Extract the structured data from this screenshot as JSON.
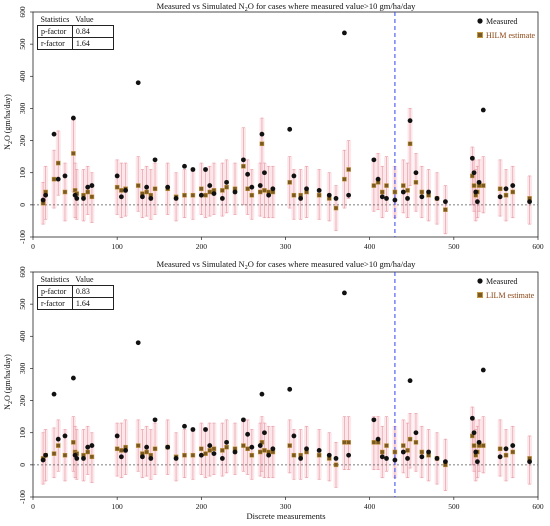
{
  "colors": {
    "measured": "#111111",
    "estimate_fill": "#7a5a22",
    "estimate_stroke": "#c8963a",
    "errorbar": "#e8a0a8",
    "band": "#fbe3e8",
    "vline": "#3344ee",
    "hline": "#555555",
    "legend_estimate_text": "#8b4513"
  },
  "charts": [
    {
      "title_prefix": "Measured vs Simulated N",
      "title_sub": "2",
      "title_suffix": "O for cases where measured value>10 gm/ha/day",
      "ylabel_prefix": "N",
      "ylabel_sub": "2",
      "ylabel_suffix": "O (gm/ha/day)",
      "legend_measured": "Measured",
      "legend_estimate": "HILM estimate",
      "stats": {
        "header_label": "Statistics",
        "header_value": "Value",
        "rows": [
          {
            "label": "p-factor",
            "value": "0.84"
          },
          {
            "label": "r-factor",
            "value": "1.64"
          }
        ]
      }
    },
    {
      "title_prefix": "Measured vs Simulated N",
      "title_sub": "2",
      "title_suffix": "O for cases where measured value>10 gm/ha/day",
      "ylabel_prefix": "N",
      "ylabel_sub": "2",
      "ylabel_suffix": "O (gm/ha/day)",
      "xlabel": "Discrete measurements",
      "legend_measured": "Measured",
      "legend_estimate": "LILM estimate",
      "stats": {
        "header_label": "Statistics",
        "header_value": "Value",
        "rows": [
          {
            "label": "p-factor",
            "value": "0.83"
          },
          {
            "label": "r-factor",
            "value": "1.64"
          }
        ]
      }
    }
  ],
  "chart_data": [
    {
      "type": "scatter",
      "title": "Measured vs Simulated N2O for cases where measured value>10 gm/ha/day",
      "xlabel": "",
      "ylabel": "N2O (gm/ha/day)",
      "xlim": [
        0,
        600
      ],
      "ylim": [
        -100,
        600
      ],
      "xticks": [
        0,
        100,
        200,
        300,
        400,
        500,
        600
      ],
      "yticks": [
        -100,
        0,
        100,
        200,
        300,
        400,
        500,
        600
      ],
      "reference_lines": {
        "vertical_x": 430,
        "horizontal_y": 0
      },
      "legend_position": "top-right",
      "series": [
        {
          "name": "Measured",
          "x": [
            12,
            15,
            25,
            30,
            38,
            48,
            50,
            52,
            60,
            65,
            70,
            100,
            105,
            110,
            125,
            130,
            135,
            140,
            145,
            160,
            170,
            180,
            190,
            200,
            205,
            210,
            215,
            225,
            230,
            240,
            250,
            255,
            260,
            270,
            272,
            275,
            280,
            285,
            305,
            310,
            318,
            325,
            340,
            352,
            360,
            370,
            375,
            405,
            410,
            415,
            420,
            430,
            440,
            445,
            448,
            455,
            462,
            470,
            480,
            490,
            522,
            524,
            526,
            528,
            530,
            535,
            555,
            562,
            570,
            590
          ],
          "y": [
            15,
            30,
            220,
            80,
            90,
            270,
            30,
            20,
            20,
            55,
            60,
            90,
            25,
            45,
            380,
            25,
            55,
            20,
            140,
            55,
            20,
            120,
            110,
            30,
            110,
            60,
            35,
            20,
            70,
            40,
            140,
            95,
            55,
            60,
            220,
            100,
            30,
            50,
            235,
            90,
            20,
            50,
            45,
            30,
            20,
            535,
            30,
            140,
            80,
            25,
            20,
            15,
            40,
            20,
            262,
            100,
            25,
            40,
            20,
            10,
            145,
            100,
            40,
            10,
            70,
            295,
            25,
            50,
            60,
            10
          ]
        },
        {
          "name": "HILM estimate",
          "x": [
            12,
            15,
            25,
            30,
            38,
            48,
            50,
            52,
            60,
            65,
            70,
            100,
            105,
            110,
            125,
            130,
            135,
            140,
            145,
            160,
            170,
            180,
            190,
            200,
            205,
            210,
            215,
            225,
            230,
            240,
            250,
            255,
            260,
            270,
            272,
            275,
            280,
            285,
            305,
            310,
            318,
            325,
            340,
            352,
            360,
            370,
            375,
            405,
            410,
            415,
            420,
            430,
            440,
            445,
            448,
            455,
            462,
            470,
            480,
            490,
            522,
            524,
            526,
            528,
            530,
            535,
            555,
            562,
            570,
            590
          ],
          "y": [
            5,
            40,
            80,
            130,
            40,
            160,
            45,
            35,
            30,
            40,
            25,
            55,
            45,
            50,
            60,
            35,
            40,
            30,
            50,
            50,
            25,
            30,
            30,
            50,
            30,
            40,
            45,
            45,
            55,
            50,
            120,
            50,
            30,
            40,
            190,
            45,
            40,
            40,
            70,
            30,
            30,
            40,
            30,
            20,
            -10,
            80,
            110,
            60,
            70,
            40,
            60,
            40,
            60,
            45,
            190,
            70,
            40,
            30,
            20,
            -15,
            90,
            60,
            30,
            40,
            60,
            60,
            50,
            30,
            40,
            20
          ],
          "lower": [
            -60,
            -45,
            -10,
            30,
            -50,
            40,
            -40,
            -45,
            -50,
            -30,
            -55,
            -30,
            -40,
            -35,
            -20,
            -40,
            -35,
            -45,
            -30,
            -30,
            -50,
            -40,
            -45,
            -30,
            -40,
            -35,
            -30,
            -35,
            -25,
            -30,
            0,
            -30,
            -45,
            -35,
            40,
            -40,
            -40,
            -40,
            -10,
            -45,
            -45,
            -40,
            -45,
            -50,
            -80,
            -10,
            20,
            -20,
            -15,
            -40,
            -20,
            -40,
            -25,
            -40,
            60,
            -20,
            -40,
            -50,
            -60,
            -90,
            0,
            -20,
            -50,
            -40,
            -20,
            -25,
            -35,
            -50,
            -40,
            -60
          ],
          "upper": [
            70,
            120,
            170,
            230,
            130,
            270,
            130,
            110,
            110,
            120,
            100,
            140,
            130,
            130,
            150,
            110,
            120,
            110,
            130,
            130,
            100,
            110,
            110,
            130,
            110,
            120,
            130,
            130,
            140,
            130,
            240,
            140,
            110,
            130,
            270,
            130,
            120,
            120,
            150,
            110,
            110,
            120,
            110,
            100,
            60,
            170,
            200,
            140,
            160,
            120,
            150,
            120,
            140,
            130,
            300,
            160,
            120,
            110,
            100,
            60,
            180,
            140,
            110,
            120,
            140,
            150,
            140,
            110,
            120,
            90
          ]
        }
      ]
    },
    {
      "type": "scatter",
      "title": "Measured vs Simulated N2O for cases where measured value>10 gm/ha/day",
      "xlabel": "Discrete measurements",
      "ylabel": "N2O (gm/ha/day)",
      "xlim": [
        0,
        600
      ],
      "ylim": [
        -100,
        600
      ],
      "xticks": [
        0,
        100,
        200,
        300,
        400,
        500,
        600
      ],
      "yticks": [
        -100,
        0,
        100,
        200,
        300,
        400,
        500,
        600
      ],
      "reference_lines": {
        "vertical_x": 430,
        "horizontal_y": 0
      },
      "legend_position": "top-right",
      "series": [
        {
          "name": "Measured",
          "x": [
            12,
            15,
            25,
            30,
            38,
            48,
            50,
            52,
            60,
            65,
            70,
            100,
            105,
            110,
            125,
            130,
            135,
            140,
            145,
            160,
            170,
            180,
            190,
            200,
            205,
            210,
            215,
            225,
            230,
            240,
            250,
            255,
            260,
            270,
            272,
            275,
            280,
            285,
            305,
            310,
            318,
            325,
            340,
            352,
            360,
            370,
            375,
            405,
            410,
            415,
            420,
            430,
            440,
            445,
            448,
            455,
            462,
            470,
            480,
            490,
            522,
            524,
            526,
            528,
            530,
            535,
            555,
            562,
            570,
            590
          ],
          "y": [
            15,
            30,
            220,
            80,
            90,
            270,
            30,
            20,
            20,
            55,
            60,
            90,
            25,
            45,
            380,
            25,
            55,
            20,
            140,
            55,
            20,
            120,
            110,
            30,
            110,
            60,
            35,
            20,
            70,
            40,
            140,
            95,
            55,
            60,
            220,
            100,
            30,
            50,
            235,
            90,
            20,
            50,
            45,
            30,
            20,
            535,
            30,
            140,
            80,
            25,
            20,
            15,
            40,
            20,
            262,
            100,
            25,
            40,
            20,
            10,
            145,
            100,
            40,
            10,
            70,
            295,
            25,
            50,
            60,
            10
          ]
        },
        {
          "name": "LILM estimate",
          "x": [
            12,
            15,
            25,
            30,
            38,
            48,
            50,
            52,
            60,
            65,
            70,
            100,
            105,
            110,
            125,
            130,
            135,
            140,
            145,
            160,
            170,
            180,
            190,
            200,
            205,
            210,
            215,
            225,
            230,
            240,
            250,
            255,
            260,
            270,
            272,
            275,
            280,
            285,
            305,
            310,
            318,
            325,
            340,
            352,
            360,
            370,
            375,
            405,
            410,
            415,
            420,
            430,
            440,
            445,
            448,
            455,
            462,
            470,
            480,
            490,
            522,
            524,
            526,
            528,
            530,
            535,
            555,
            562,
            570,
            590
          ],
          "y": [
            20,
            30,
            35,
            60,
            30,
            70,
            40,
            35,
            30,
            40,
            25,
            50,
            45,
            55,
            60,
            35,
            40,
            30,
            50,
            55,
            25,
            30,
            30,
            50,
            35,
            45,
            50,
            45,
            55,
            50,
            60,
            50,
            30,
            40,
            70,
            45,
            40,
            40,
            60,
            30,
            30,
            40,
            30,
            20,
            0,
            70,
            70,
            70,
            70,
            40,
            60,
            40,
            60,
            45,
            80,
            70,
            40,
            30,
            20,
            0,
            90,
            60,
            30,
            40,
            60,
            60,
            50,
            30,
            40,
            20
          ],
          "lower": [
            -60,
            -50,
            -40,
            -20,
            -50,
            -20,
            -40,
            -45,
            -50,
            -30,
            -55,
            -35,
            -40,
            -30,
            -20,
            -40,
            -35,
            -45,
            -30,
            -30,
            -50,
            -40,
            -45,
            -30,
            -40,
            -35,
            -30,
            -35,
            -25,
            -30,
            -20,
            -30,
            -45,
            -35,
            -20,
            -40,
            -40,
            -40,
            -25,
            -45,
            -45,
            -40,
            -45,
            -50,
            -70,
            -15,
            -15,
            -15,
            -15,
            -40,
            -20,
            -40,
            -25,
            -40,
            -10,
            -20,
            -40,
            -50,
            -60,
            -80,
            0,
            -20,
            -50,
            -40,
            -20,
            -25,
            -35,
            -50,
            -40,
            -60
          ],
          "upper": [
            100,
            110,
            115,
            140,
            110,
            150,
            120,
            110,
            110,
            120,
            100,
            130,
            130,
            140,
            140,
            110,
            120,
            110,
            130,
            140,
            100,
            110,
            110,
            130,
            110,
            130,
            130,
            130,
            140,
            130,
            140,
            140,
            110,
            130,
            150,
            130,
            120,
            120,
            140,
            110,
            110,
            120,
            110,
            100,
            70,
            150,
            150,
            150,
            150,
            120,
            150,
            120,
            140,
            130,
            160,
            160,
            120,
            110,
            100,
            80,
            180,
            140,
            110,
            120,
            140,
            150,
            140,
            110,
            120,
            90
          ]
        }
      ]
    }
  ]
}
